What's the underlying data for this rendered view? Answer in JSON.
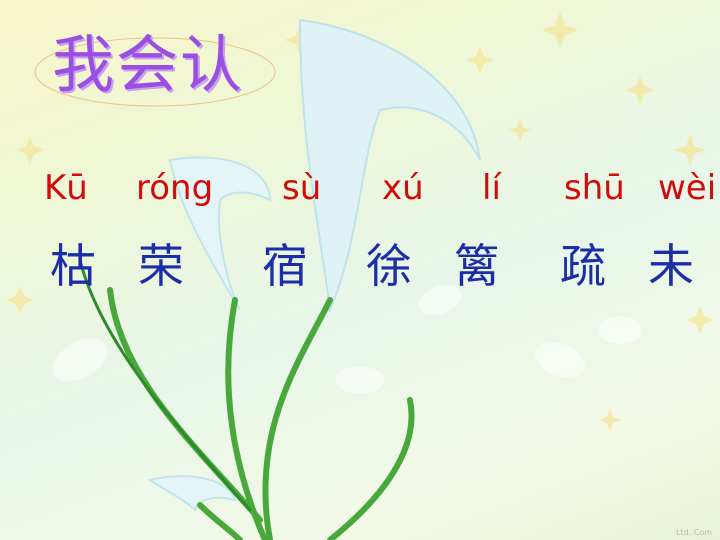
{
  "slide": {
    "title": "我会认",
    "words": [
      {
        "pinyin": "Kū",
        "hanzi": "枯"
      },
      {
        "pinyin": "róng",
        "hanzi": "荣"
      },
      {
        "pinyin": "sù",
        "hanzi": "宿"
      },
      {
        "pinyin": "xú",
        "hanzi": "徐"
      },
      {
        "pinyin": "lí",
        "hanzi": "篱"
      },
      {
        "pinyin": "shū",
        "hanzi": "疏"
      },
      {
        "pinyin": "wèi",
        "hanzi": "未"
      }
    ],
    "credit": "Ltd. Com",
    "colors": {
      "title": "#9b4fe0",
      "pinyin": "#d40b0b",
      "hanzi": "#1c2da8"
    }
  }
}
